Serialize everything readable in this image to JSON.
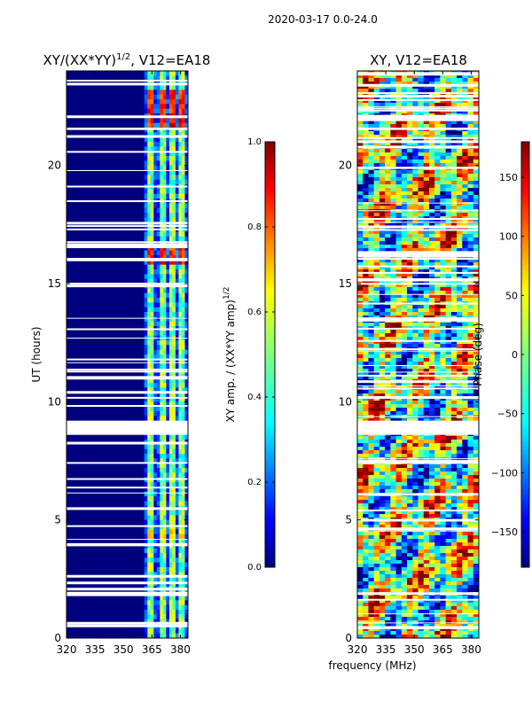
{
  "figure_title": "2020-03-17 0.0-24.0",
  "chart_data": [
    {
      "type": "heatmap",
      "title": "XY/(XX*YY)",
      "title_superscript": "1/2",
      "title_suffix": ", V12=EA18",
      "xlabel": "",
      "ylabel": "UT (hours)",
      "xlim": [
        320,
        384
      ],
      "ylim": [
        0,
        24
      ],
      "xticks": [
        320,
        335,
        350,
        365,
        380
      ],
      "yticks": [
        0,
        5,
        10,
        15,
        20
      ],
      "colorbar": {
        "label": "XY amp. / (XX*YY amp)",
        "label_superscript": "1/2",
        "range": [
          0.0,
          1.0
        ],
        "ticks": [
          "0.0",
          "0.2",
          "0.4",
          "0.6",
          "0.8",
          "1.0"
        ],
        "colormap": "jet"
      },
      "signal_band_mhz": [
        361,
        384
      ],
      "flagged_ut_intervals": [
        [
          8.6,
          9.2
        ],
        [
          16.5,
          16.7
        ],
        [
          21.5,
          21.6
        ]
      ]
    },
    {
      "type": "heatmap",
      "title": "XY, V12=EA18",
      "xlabel": "frequency (MHz)",
      "ylabel": "",
      "xlim": [
        320,
        384
      ],
      "ylim": [
        0,
        24
      ],
      "xticks": [
        320,
        335,
        350,
        365,
        380
      ],
      "yticks": [
        0,
        5,
        10,
        15,
        20
      ],
      "colorbar": {
        "label": "Phase (deg)",
        "range": [
          -180,
          180
        ],
        "ticks": [
          "150",
          "100",
          "50",
          "0",
          "−50",
          "−100",
          "−150"
        ],
        "colormap": "jet"
      },
      "flagged_ut_intervals": [
        [
          8.6,
          9.2
        ],
        [
          16.2,
          16.35
        ],
        [
          21.5,
          21.6
        ]
      ]
    }
  ],
  "colors": {
    "jet": [
      "#00007f",
      "#0000ff",
      "#0080ff",
      "#00ffff",
      "#80ff80",
      "#ffff00",
      "#ff8000",
      "#ff0000",
      "#7f0000"
    ]
  }
}
